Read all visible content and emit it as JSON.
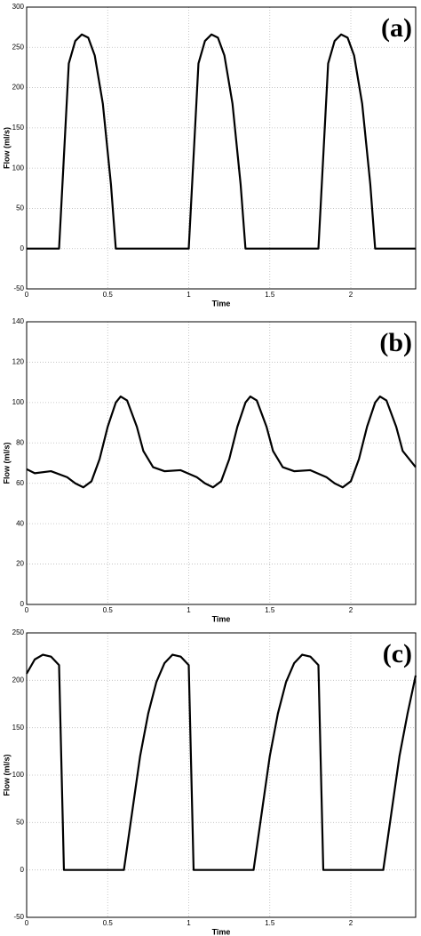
{
  "chart_data": [
    {
      "type": "line",
      "panel_label": "(a)",
      "x_label": "Time",
      "y_label": "Flow (ml/s)",
      "xlim": [
        0,
        2.4
      ],
      "xticks": [
        0,
        0.5,
        1,
        1.5,
        2
      ],
      "ylim": [
        -50,
        300
      ],
      "yticks": [
        -50,
        0,
        50,
        100,
        150,
        200,
        250,
        300
      ],
      "grid": true,
      "series": [
        {
          "color": "#000000",
          "x": [
            0,
            0.2,
            0.26,
            0.3,
            0.34,
            0.38,
            0.42,
            0.47,
            0.52,
            0.55,
            1.0,
            1.06,
            1.1,
            1.14,
            1.18,
            1.22,
            1.27,
            1.32,
            1.35,
            1.8,
            1.86,
            1.9,
            1.94,
            1.98,
            2.02,
            2.07,
            2.12,
            2.15,
            2.4
          ],
          "values": [
            0,
            0,
            230,
            258,
            266,
            262,
            240,
            180,
            80,
            0,
            0,
            230,
            258,
            266,
            262,
            240,
            180,
            80,
            0,
            0,
            230,
            258,
            266,
            262,
            240,
            180,
            80,
            0,
            0
          ]
        }
      ]
    },
    {
      "type": "line",
      "panel_label": "(b)",
      "x_label": "Time",
      "y_label": "Flow (ml/s)",
      "xlim": [
        0,
        2.4
      ],
      "xticks": [
        0,
        0.5,
        1,
        1.5,
        2
      ],
      "ylim": [
        0,
        140
      ],
      "yticks": [
        0,
        20,
        40,
        60,
        80,
        100,
        120,
        140
      ],
      "grid": true,
      "series": [
        {
          "color": "#000000",
          "x": [
            0,
            0.05,
            0.15,
            0.25,
            0.3,
            0.35,
            0.4,
            0.45,
            0.5,
            0.55,
            0.58,
            0.62,
            0.68,
            0.72,
            0.78,
            0.85,
            0.95,
            1.05,
            1.1,
            1.15,
            1.2,
            1.25,
            1.3,
            1.35,
            1.38,
            1.42,
            1.48,
            1.52,
            1.58,
            1.65,
            1.75,
            1.85,
            1.9,
            1.95,
            2.0,
            2.05,
            2.1,
            2.15,
            2.18,
            2.22,
            2.28,
            2.32,
            2.4
          ],
          "values": [
            67,
            65,
            66,
            63,
            60,
            58,
            61,
            72,
            88,
            100,
            103,
            101,
            88,
            76,
            68,
            66,
            66.5,
            63,
            60,
            58,
            61,
            72,
            88,
            100,
            103,
            101,
            88,
            76,
            68,
            66,
            66.5,
            63,
            60,
            58,
            61,
            72,
            88,
            100,
            103,
            101,
            88,
            76,
            68
          ]
        }
      ]
    },
    {
      "type": "line",
      "panel_label": "(c)",
      "x_label": "Time",
      "y_label": "Flow (ml/s)",
      "xlim": [
        0,
        2.4
      ],
      "xticks": [
        0,
        0.5,
        1,
        1.5,
        2
      ],
      "ylim": [
        -50,
        250
      ],
      "yticks": [
        -50,
        0,
        50,
        100,
        150,
        200,
        250
      ],
      "grid": true,
      "series": [
        {
          "color": "#000000",
          "x": [
            0,
            0.05,
            0.1,
            0.15,
            0.2,
            0.23,
            0.6,
            0.65,
            0.7,
            0.75,
            0.8,
            0.85,
            0.9,
            0.95,
            1.0,
            1.03,
            1.4,
            1.45,
            1.5,
            1.55,
            1.6,
            1.65,
            1.7,
            1.75,
            1.8,
            1.83,
            2.2,
            2.25,
            2.3,
            2.35,
            2.4
          ],
          "values": [
            207,
            222,
            227,
            225,
            216,
            0,
            0,
            60,
            120,
            165,
            198,
            218,
            227,
            225,
            216,
            0,
            0,
            60,
            120,
            165,
            198,
            218,
            227,
            225,
            216,
            0,
            0,
            60,
            120,
            165,
            205
          ]
        }
      ]
    }
  ]
}
